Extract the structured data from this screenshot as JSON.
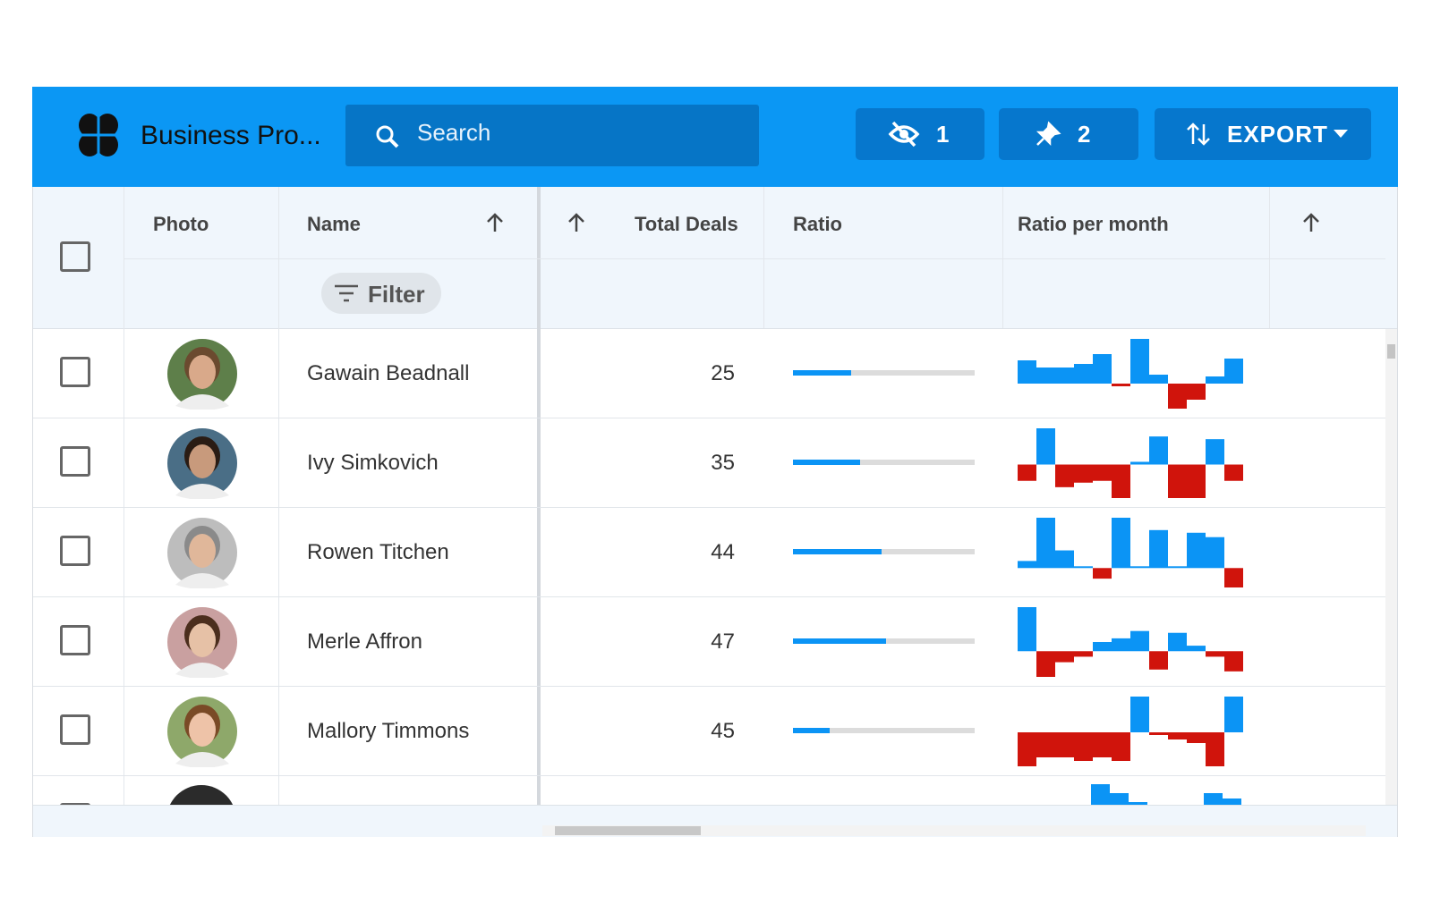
{
  "header": {
    "title": "Business Pro...",
    "search_placeholder": "Search",
    "hidden_columns": 1,
    "pinned_columns": 2,
    "export_label": "EXPORT"
  },
  "columns": [
    "Photo",
    "Name",
    "Total Deals",
    "Ratio",
    "Ratio per month"
  ],
  "filter_label": "Filter",
  "rows": [
    {
      "name": "Gawain Beadnall",
      "total_deals": 25,
      "ratio": 0.32,
      "ratio_per_month": [
        26,
        18,
        18,
        22,
        33,
        -3,
        50,
        10,
        -28,
        -18,
        8,
        28
      ]
    },
    {
      "name": "Ivy Simkovich",
      "total_deals": 35,
      "ratio": 0.37,
      "ratio_per_month": [
        -18,
        40,
        -25,
        -20,
        -18,
        -37,
        3,
        31,
        -37,
        -37,
        28,
        -18
      ]
    },
    {
      "name": "Rowen Titchen",
      "total_deals": 44,
      "ratio": 0.49,
      "ratio_per_month": [
        8,
        57,
        20,
        2,
        -12,
        57,
        2,
        43,
        2,
        40,
        35,
        -22
      ]
    },
    {
      "name": "Merle Affron",
      "total_deals": 47,
      "ratio": 0.51,
      "ratio_per_month": [
        48,
        -28,
        -12,
        -6,
        10,
        14,
        22,
        -20,
        20,
        6,
        -6,
        -22
      ]
    },
    {
      "name": "Mallory Timmons",
      "total_deals": 45,
      "ratio": 0.2,
      "ratio_per_month": [
        -38,
        -28,
        -28,
        -32,
        -28,
        -32,
        40,
        -3,
        -8,
        -12,
        -38,
        40
      ]
    }
  ]
}
